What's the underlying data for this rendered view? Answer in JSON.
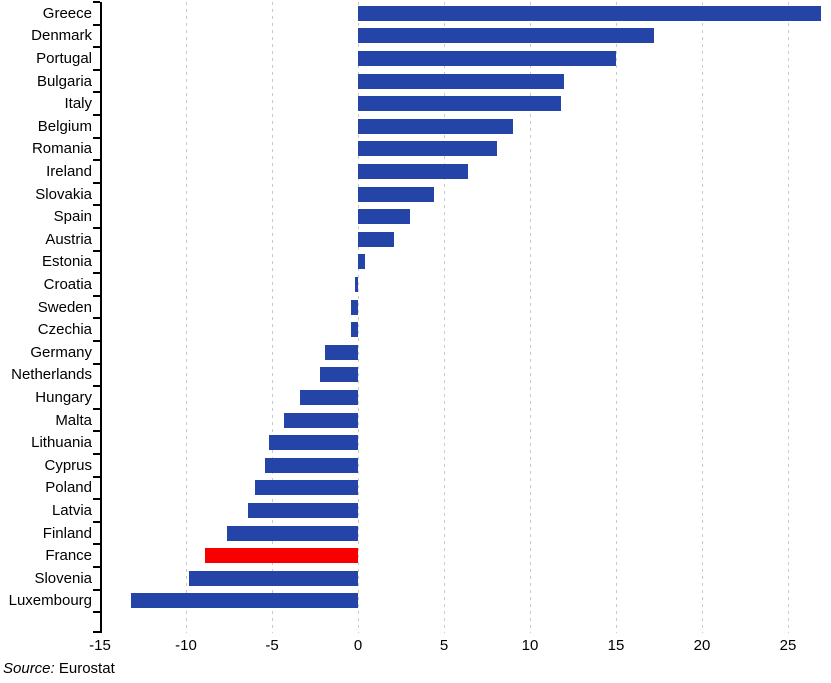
{
  "chart_data": {
    "type": "bar",
    "orientation": "horizontal",
    "title": "",
    "xlabel": "",
    "ylabel": "",
    "categories": [
      "Greece",
      "Denmark",
      "Portugal",
      "Bulgaria",
      "Italy",
      "Belgium",
      "Romania",
      "Ireland",
      "Slovakia",
      "Spain",
      "Austria",
      "Estonia",
      "Croatia",
      "Sweden",
      "Czechia",
      "Germany",
      "Netherlands",
      "Hungary",
      "Malta",
      "Lithuania",
      "Cyprus",
      "Poland",
      "Latvia",
      "Finland",
      "France",
      "Slovenia",
      "Luxembourg"
    ],
    "values": [
      26.9,
      17.2,
      15.0,
      12.0,
      11.8,
      9.0,
      8.1,
      6.4,
      4.4,
      3.0,
      2.1,
      0.4,
      -0.2,
      -0.4,
      -0.4,
      -1.9,
      -2.2,
      -3.4,
      -4.3,
      -5.2,
      -5.4,
      -6.0,
      -6.4,
      -7.6,
      -8.9,
      -9.8,
      -13.2
    ],
    "highlight_category": "France",
    "x_ticks": [
      -15,
      -10,
      -5,
      0,
      5,
      10,
      15,
      20,
      25
    ],
    "xlim": [
      -15,
      27.5
    ],
    "grid": "vertical-dashed",
    "legend": null,
    "colors": {
      "bar": "#2444a8",
      "highlight": "#f80000",
      "gridline": "#c9c9c9",
      "axis": "#000000",
      "text": "#000000"
    }
  },
  "source": {
    "label": "Source:",
    "value": " Eurostat"
  }
}
